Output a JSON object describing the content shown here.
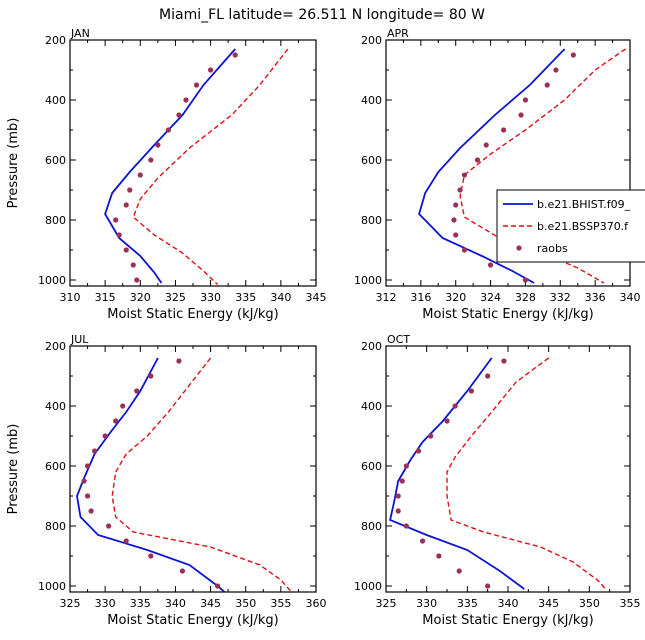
{
  "title": "Miami_FL  latitude= 26.511 N longitude= 80 W",
  "colors": {
    "hist": "#0a14d2",
    "ssp": "#e01010",
    "raobs": "#9b2f5a"
  },
  "legend": {
    "placement": "right of APR panel",
    "entries": [
      {
        "key": "hist",
        "label": "b.e21.BHIST.f09_"
      },
      {
        "key": "ssp",
        "label": "b.e21.BSSP370.f"
      },
      {
        "key": "raobs",
        "label": "raobs"
      }
    ]
  },
  "chart_data": [
    {
      "type": "line",
      "panel": "JAN",
      "xlabel": "Moist Static Energy (kJ/kg)",
      "ylabel": "Pressure (mb)",
      "xlim": [
        310,
        345
      ],
      "ylim": [
        1020,
        200
      ],
      "xticks": [
        "310",
        "315",
        "320",
        "325",
        "330",
        "335",
        "340",
        "345"
      ],
      "yticks": [
        "200",
        "400",
        "600",
        "800",
        "1000"
      ],
      "series": [
        {
          "name": "hist",
          "style": "solid",
          "points": [
            [
              333.5,
              230
            ],
            [
              329,
              350
            ],
            [
              326,
              450
            ],
            [
              322,
              550
            ],
            [
              318.5,
              640
            ],
            [
              316,
              710
            ],
            [
              315,
              780
            ],
            [
              317,
              860
            ],
            [
              320,
              920
            ],
            [
              322,
              975
            ],
            [
              323,
              1010
            ]
          ]
        },
        {
          "name": "ssp",
          "style": "dashed",
          "points": [
            [
              341,
              230
            ],
            [
              337,
              350
            ],
            [
              333,
              450
            ],
            [
              327,
              560
            ],
            [
              322.5,
              660
            ],
            [
              320,
              730
            ],
            [
              319,
              790
            ],
            [
              322,
              850
            ],
            [
              326,
              910
            ],
            [
              329,
              970
            ],
            [
              331,
              1015
            ]
          ]
        }
      ],
      "markers": {
        "name": "raobs",
        "points": [
          [
            333.5,
            250
          ],
          [
            330,
            300
          ],
          [
            328,
            350
          ],
          [
            326.5,
            400
          ],
          [
            325.5,
            450
          ],
          [
            324,
            500
          ],
          [
            322.5,
            550
          ],
          [
            321.5,
            600
          ],
          [
            320,
            650
          ],
          [
            318.5,
            700
          ],
          [
            318,
            750
          ],
          [
            316.5,
            800
          ],
          [
            317,
            850
          ],
          [
            318,
            900
          ],
          [
            319,
            950
          ],
          [
            319.5,
            1000
          ]
        ]
      }
    },
    {
      "type": "line",
      "panel": "APR",
      "xlabel": "Moist Static Energy (kJ/kg)",
      "ylabel": "Pressure (mb)",
      "xlim": [
        312,
        340
      ],
      "ylim": [
        1020,
        200
      ],
      "xticks": [
        "312",
        "316",
        "320",
        "324",
        "328",
        "332",
        "336",
        "340"
      ],
      "yticks": [
        "200",
        "400",
        "600",
        "800",
        "1000"
      ],
      "series": [
        {
          "name": "hist",
          "style": "solid",
          "points": [
            [
              332.5,
              230
            ],
            [
              328.5,
              350
            ],
            [
              324.5,
              450
            ],
            [
              320.5,
              560
            ],
            [
              318,
              640
            ],
            [
              316.5,
              710
            ],
            [
              315.8,
              780
            ],
            [
              318.5,
              860
            ],
            [
              323,
              920
            ],
            [
              326.5,
              970
            ],
            [
              329,
              1010
            ]
          ]
        },
        {
          "name": "ssp",
          "style": "dashed",
          "points": [
            [
              339.5,
              230
            ],
            [
              336,
              300
            ],
            [
              332.5,
              400
            ],
            [
              328,
              500
            ],
            [
              324,
              580
            ],
            [
              321,
              650
            ],
            [
              320.5,
              720
            ],
            [
              321,
              790
            ],
            [
              325,
              860
            ],
            [
              330,
              910
            ],
            [
              334,
              960
            ],
            [
              337,
              1010
            ]
          ]
        }
      ],
      "markers": {
        "name": "raobs",
        "points": [
          [
            333.5,
            250
          ],
          [
            331.5,
            300
          ],
          [
            330.5,
            350
          ],
          [
            328,
            400
          ],
          [
            327.5,
            450
          ],
          [
            325.5,
            500
          ],
          [
            323.5,
            550
          ],
          [
            322.5,
            600
          ],
          [
            321,
            650
          ],
          [
            320.5,
            700
          ],
          [
            320,
            750
          ],
          [
            319.8,
            800
          ],
          [
            320,
            850
          ],
          [
            321,
            900
          ],
          [
            324,
            950
          ],
          [
            328,
            1000
          ]
        ]
      }
    },
    {
      "type": "line",
      "panel": "JUL",
      "xlabel": "Moist Static Energy (kJ/kg)",
      "ylabel": "Pressure (mb)",
      "xlim": [
        325,
        360
      ],
      "ylim": [
        1020,
        200
      ],
      "xticks": [
        "325",
        "330",
        "335",
        "340",
        "345",
        "350",
        "355",
        "360"
      ],
      "yticks": [
        "200",
        "400",
        "600",
        "800",
        "1000"
      ],
      "series": [
        {
          "name": "hist",
          "style": "solid",
          "points": [
            [
              337.5,
              240
            ],
            [
              335,
              350
            ],
            [
              333,
              420
            ],
            [
              331,
              480
            ],
            [
              328.5,
              560
            ],
            [
              327,
              640
            ],
            [
              326,
              700
            ],
            [
              326.5,
              770
            ],
            [
              329,
              830
            ],
            [
              336,
              880
            ],
            [
              342,
              930
            ],
            [
              346,
              1000
            ],
            [
              347,
              1020
            ]
          ]
        },
        {
          "name": "ssp",
          "style": "dashed",
          "points": [
            [
              345,
              240
            ],
            [
              342,
              330
            ],
            [
              339,
              420
            ],
            [
              336,
              500
            ],
            [
              333,
              560
            ],
            [
              331.5,
              620
            ],
            [
              331,
              700
            ],
            [
              331.5,
              770
            ],
            [
              334,
              820
            ],
            [
              345,
              870
            ],
            [
              352,
              930
            ],
            [
              355,
              980
            ],
            [
              356.5,
              1020
            ]
          ]
        }
      ],
      "markers": {
        "name": "raobs",
        "points": [
          [
            340.5,
            250
          ],
          [
            336.5,
            300
          ],
          [
            334.5,
            350
          ],
          [
            332.5,
            400
          ],
          [
            331.5,
            450
          ],
          [
            330,
            500
          ],
          [
            328.5,
            550
          ],
          [
            327.5,
            600
          ],
          [
            327,
            650
          ],
          [
            327.5,
            700
          ],
          [
            328,
            750
          ],
          [
            330.5,
            800
          ],
          [
            333,
            850
          ],
          [
            336.5,
            900
          ],
          [
            341,
            950
          ],
          [
            346,
            1000
          ]
        ]
      }
    },
    {
      "type": "line",
      "panel": "OCT",
      "xlabel": "Moist Static Energy (kJ/kg)",
      "ylabel": "Pressure (mb)",
      "xlim": [
        325,
        355
      ],
      "ylim": [
        1020,
        200
      ],
      "xticks": [
        "325",
        "330",
        "335",
        "340",
        "345",
        "350",
        "355"
      ],
      "yticks": [
        "200",
        "400",
        "600",
        "800",
        "1000"
      ],
      "series": [
        {
          "name": "hist",
          "style": "solid",
          "points": [
            [
              338,
              240
            ],
            [
              335,
              350
            ],
            [
              332,
              450
            ],
            [
              329.5,
              520
            ],
            [
              328,
              580
            ],
            [
              326.5,
              650
            ],
            [
              326,
              720
            ],
            [
              325.5,
              780
            ],
            [
              330,
              830
            ],
            [
              335,
              880
            ],
            [
              339,
              950
            ],
            [
              342,
              1010
            ]
          ]
        },
        {
          "name": "ssp",
          "style": "dashed",
          "points": [
            [
              345,
              240
            ],
            [
              341,
              320
            ],
            [
              338,
              420
            ],
            [
              335.5,
              500
            ],
            [
              333.5,
              570
            ],
            [
              332.5,
              620
            ],
            [
              332.5,
              700
            ],
            [
              333,
              780
            ],
            [
              337,
              820
            ],
            [
              344,
              870
            ],
            [
              348,
              920
            ],
            [
              351,
              980
            ],
            [
              352,
              1010
            ]
          ]
        }
      ],
      "markers": {
        "name": "raobs",
        "points": [
          [
            339.5,
            250
          ],
          [
            337.5,
            300
          ],
          [
            335.5,
            350
          ],
          [
            333.5,
            400
          ],
          [
            332.5,
            450
          ],
          [
            330.5,
            500
          ],
          [
            329,
            550
          ],
          [
            327.5,
            600
          ],
          [
            327,
            650
          ],
          [
            326.5,
            700
          ],
          [
            326.5,
            750
          ],
          [
            327.5,
            800
          ],
          [
            329.5,
            850
          ],
          [
            331.5,
            900
          ],
          [
            334,
            950
          ],
          [
            337.5,
            1000
          ]
        ]
      }
    }
  ]
}
